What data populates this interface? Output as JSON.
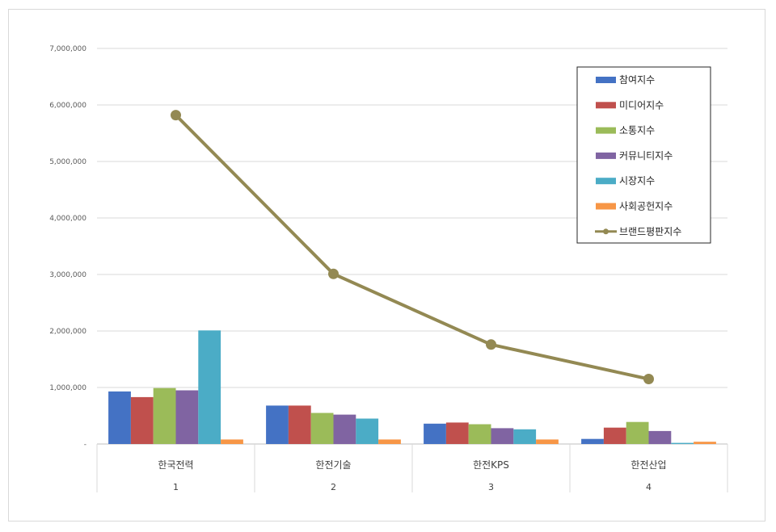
{
  "chart_data": {
    "type": "bar",
    "categories": [
      "한국전력",
      "한전기술",
      "한전KPS",
      "한전산업"
    ],
    "category_index": [
      "1",
      "2",
      "3",
      "4"
    ],
    "y_ticks": [
      "-",
      "1,000,000",
      "2,000,000",
      "3,000,000",
      "4,000,000",
      "5,000,000",
      "6,000,000",
      "7,000,000"
    ],
    "ylim": [
      0,
      7000000
    ],
    "grid": true,
    "legend_position": "top-right",
    "series": [
      {
        "name": "참여지수",
        "type": "bar",
        "color": "#4472c4",
        "values": [
          930000,
          680000,
          360000,
          90000
        ]
      },
      {
        "name": "미디어지수",
        "type": "bar",
        "color": "#c0504d",
        "values": [
          830000,
          680000,
          380000,
          290000
        ]
      },
      {
        "name": "소통지수",
        "type": "bar",
        "color": "#9bbb59",
        "values": [
          990000,
          550000,
          350000,
          390000
        ]
      },
      {
        "name": "커뮤니티지수",
        "type": "bar",
        "color": "#8064a2",
        "values": [
          950000,
          520000,
          280000,
          230000
        ]
      },
      {
        "name": "시장지수",
        "type": "bar",
        "color": "#4bacc6",
        "values": [
          2010000,
          450000,
          260000,
          20000
        ]
      },
      {
        "name": "사회공헌지수",
        "type": "bar",
        "color": "#f79646",
        "values": [
          80000,
          80000,
          80000,
          40000
        ]
      },
      {
        "name": "브랜드평판지수",
        "type": "line",
        "color": "#938953",
        "values": [
          5820000,
          3010000,
          1760000,
          1150000
        ]
      }
    ]
  }
}
